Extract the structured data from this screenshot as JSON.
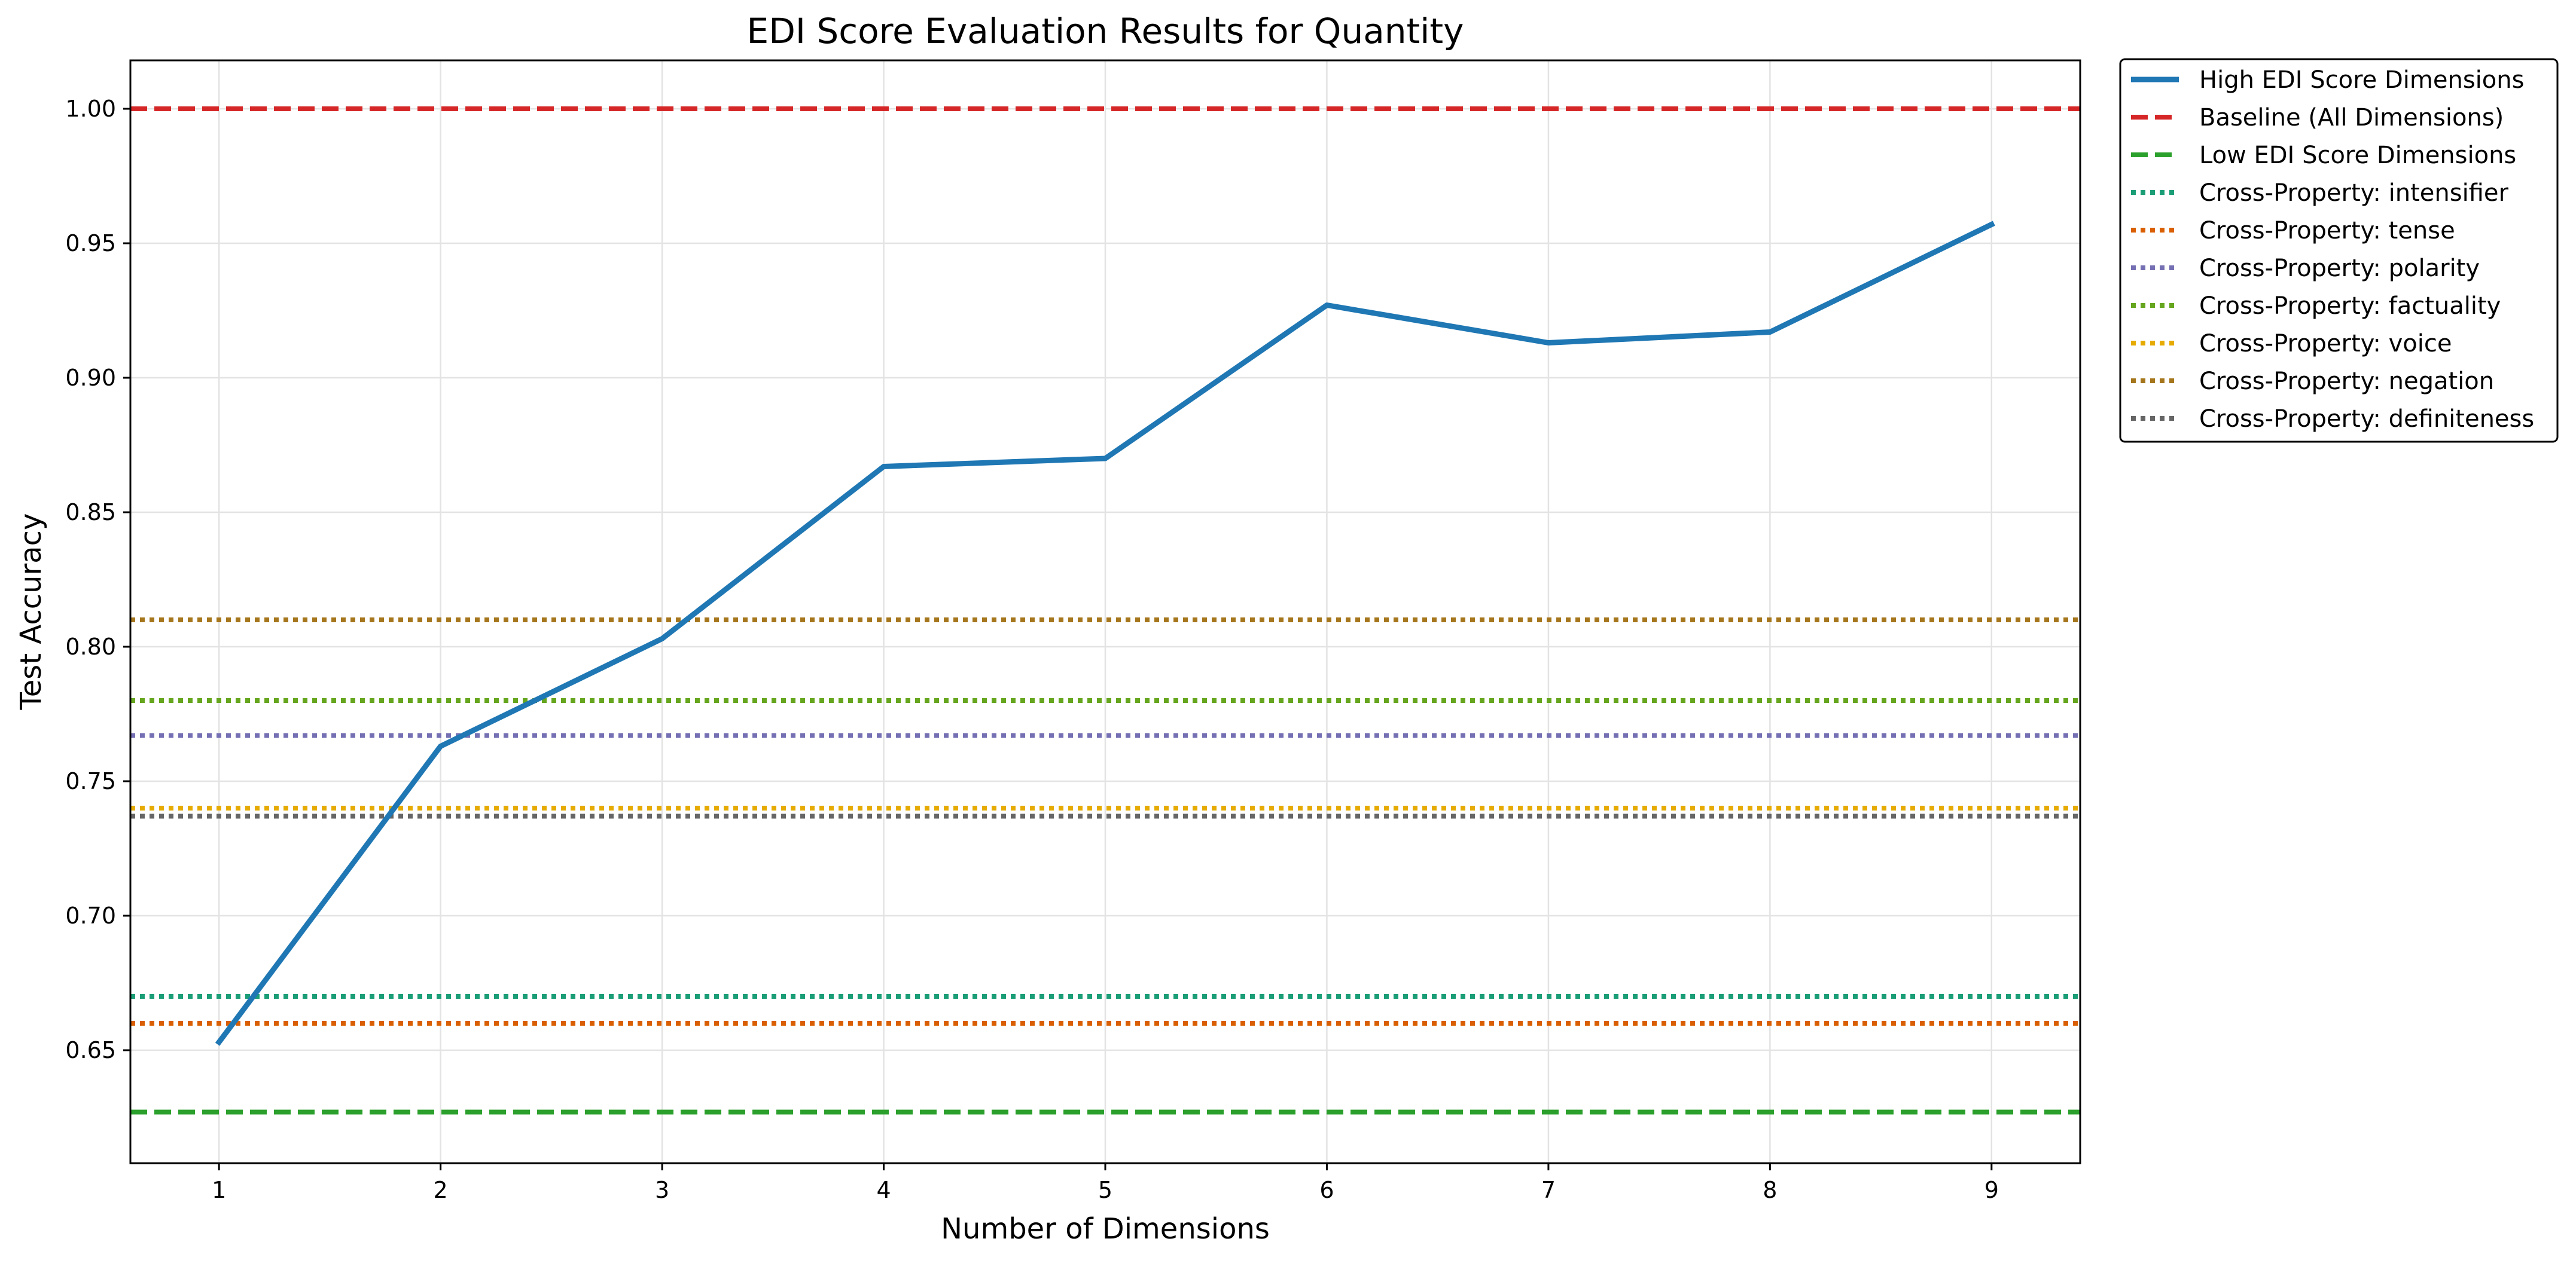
{
  "chart_data": {
    "type": "line",
    "title": "EDI Score Evaluation Results for Quantity",
    "xlabel": "Number of Dimensions",
    "ylabel": "Test Accuracy",
    "x": [
      1,
      2,
      3,
      4,
      5,
      6,
      7,
      8,
      9
    ],
    "xlim": [
      0.6,
      9.4
    ],
    "ylim": [
      0.608,
      1.018
    ],
    "yticks": [
      "0.65",
      "0.70",
      "0.75",
      "0.80",
      "0.85",
      "0.90",
      "0.95",
      "1.00"
    ],
    "grid": true,
    "legend_position": "outside-top-right",
    "series": [
      {
        "name": "High EDI Score Dimensions",
        "style": "solid",
        "color": "#1f77b4",
        "values": [
          0.653,
          0.763,
          0.803,
          0.867,
          0.87,
          0.927,
          0.913,
          0.917,
          0.957
        ]
      },
      {
        "name": "Baseline (All Dimensions)",
        "style": "dashed",
        "color": "#d62728",
        "constant": 1.0
      },
      {
        "name": "Low EDI Score Dimensions",
        "style": "dashed",
        "color": "#2ca02c",
        "constant": 0.627
      },
      {
        "name": "Cross-Property: intensifier",
        "style": "dotted",
        "color": "#1b9e77",
        "constant": 0.67
      },
      {
        "name": "Cross-Property: tense",
        "style": "dotted",
        "color": "#d95f02",
        "constant": 0.66
      },
      {
        "name": "Cross-Property: polarity",
        "style": "dotted",
        "color": "#7570b3",
        "constant": 0.767
      },
      {
        "name": "Cross-Property: factuality",
        "style": "dotted",
        "color": "#66a61e",
        "constant": 0.78
      },
      {
        "name": "Cross-Property: voice",
        "style": "dotted",
        "color": "#e6ab02",
        "constant": 0.74
      },
      {
        "name": "Cross-Property: negation",
        "style": "dotted",
        "color": "#a6761d",
        "constant": 0.81
      },
      {
        "name": "Cross-Property: definiteness",
        "style": "dotted",
        "color": "#666666",
        "constant": 0.737
      }
    ]
  }
}
